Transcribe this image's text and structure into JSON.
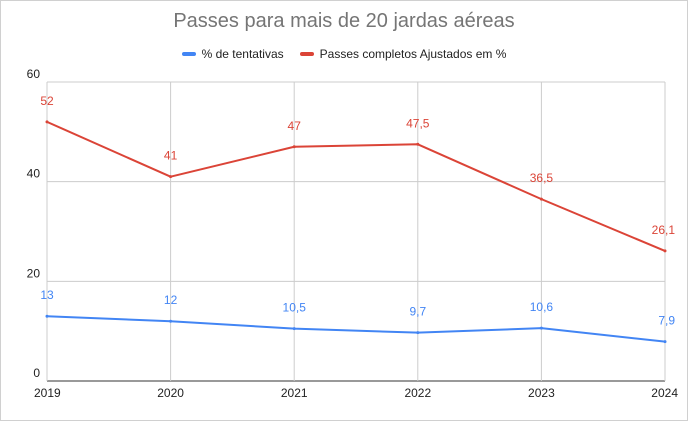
{
  "chart_data": {
    "type": "line",
    "title": "Passes para mais de 20 jardas aéreas",
    "categories": [
      "2019",
      "2020",
      "2021",
      "2022",
      "2023",
      "2024"
    ],
    "series": [
      {
        "name": "% de tentativas",
        "color": "#4285f4",
        "values": [
          13,
          12,
          10.5,
          9.7,
          10.6,
          7.9
        ],
        "labels": [
          "13",
          "12",
          "10,5",
          "9,7",
          "10,6",
          "7,9"
        ]
      },
      {
        "name": "Passes completos Ajustados em %",
        "color": "#db4437",
        "values": [
          52,
          41,
          47,
          47.5,
          36.5,
          26.1
        ],
        "labels": [
          "52",
          "41",
          "47",
          "47,5",
          "36,5",
          "26,1"
        ]
      }
    ],
    "ylim": [
      0,
      60
    ],
    "yticks": [
      "0",
      "20",
      "40",
      "60"
    ],
    "ytick_values": [
      0,
      20,
      40,
      60
    ],
    "grid": true,
    "legend_position": "top"
  }
}
